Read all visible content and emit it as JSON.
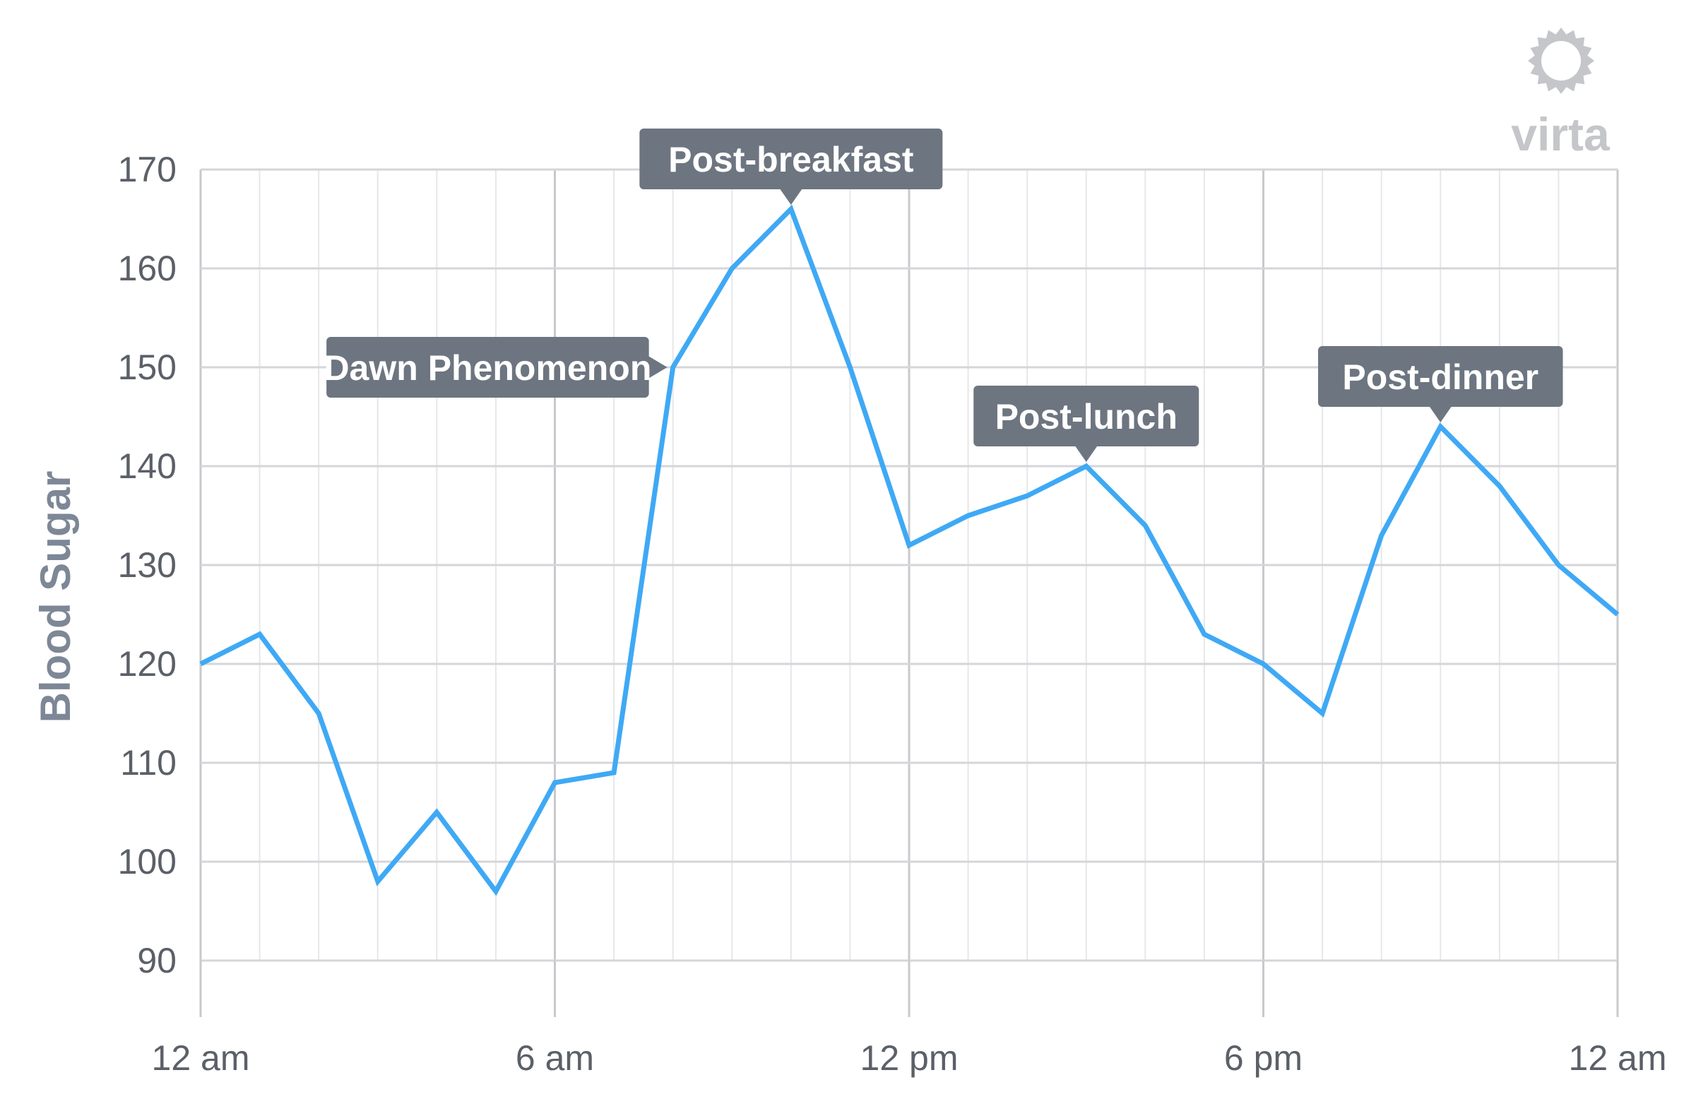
{
  "chart_data": {
    "type": "line",
    "ylabel": "Blood Sugar",
    "xlabel": "",
    "ylim": [
      90,
      170
    ],
    "yticks": [
      90,
      100,
      110,
      120,
      130,
      140,
      150,
      160,
      170
    ],
    "xlim": [
      0,
      24
    ],
    "xticks": [
      {
        "hour": 0,
        "label": "12 am"
      },
      {
        "hour": 6,
        "label": "6 am"
      },
      {
        "hour": 12,
        "label": "12 pm"
      },
      {
        "hour": 18,
        "label": "6 pm"
      },
      {
        "hour": 24,
        "label": "12 am"
      }
    ],
    "grid": true,
    "series": [
      {
        "color": "#3fa9f5",
        "x": [
          0,
          1,
          2,
          3,
          4,
          5,
          6,
          7,
          8,
          9,
          10,
          11,
          12,
          13,
          14,
          15,
          16,
          17,
          18,
          19,
          20,
          21,
          22,
          23,
          24
        ],
        "y": [
          120,
          123,
          115,
          98,
          105,
          97,
          108,
          109,
          150,
          160,
          166,
          150,
          132,
          135,
          137,
          140,
          134,
          123,
          120,
          115,
          133,
          144,
          138,
          130,
          125
        ]
      }
    ],
    "annotations": [
      {
        "label": "Dawn Phenomenon",
        "x": 8,
        "y": 150,
        "pointer": "right"
      },
      {
        "label": "Post-breakfast",
        "x": 10,
        "y": 166,
        "pointer": "down"
      },
      {
        "label": "Post-lunch",
        "x": 15,
        "y": 140,
        "pointer": "down"
      },
      {
        "label": "Post-dinner",
        "x": 21,
        "y": 144,
        "pointer": "down"
      }
    ]
  },
  "logo": {
    "text": "virta",
    "icon": "sun-icon",
    "color": "#c4c6c9"
  },
  "colors": {
    "line": "#3fa9f5",
    "callout": "#6d7580",
    "grid": "#d4d6d9",
    "major_grid": "#c7c9cc"
  }
}
